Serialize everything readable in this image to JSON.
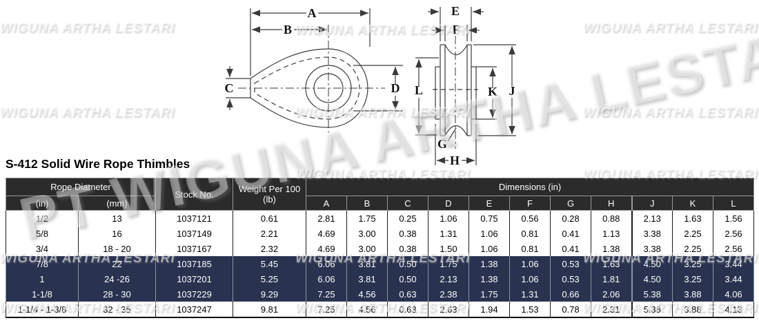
{
  "title": "S-412 Solid Wire Rope Thimbles",
  "watermark": {
    "small_text": "WIGUNA ARTHA LESTARI",
    "big_text": "PT WIGUNA ARTHA LESTARI"
  },
  "diagram": {
    "labels": {
      "a": "A",
      "b": "B",
      "c": "C",
      "d": "D",
      "e": "E",
      "f": "F",
      "g": "G",
      "h": "H",
      "j": "J",
      "k": "K",
      "l": "L"
    }
  },
  "table": {
    "headers": {
      "rope_diameter": "Rope Diameter",
      "rope_in": "(in)",
      "rope_mm": "(mm)",
      "stock_no": "Stock No.",
      "weight_line1": "Weight Per 100",
      "weight_line2": "(lb)",
      "dimensions": "Dimensions (in)",
      "dim_cols": [
        "A",
        "B",
        "C",
        "D",
        "E",
        "F",
        "G",
        "H",
        "J",
        "K",
        "L"
      ]
    },
    "rows": [
      {
        "rope_in": "1/2",
        "rope_mm": "13",
        "stock_no": "1037121",
        "weight": "0.61",
        "highlighted": false,
        "dims": [
          "2.81",
          "1.75",
          "0.25",
          "1.06",
          "0.75",
          "0.56",
          "0.28",
          "0.88",
          "2.13",
          "1.63",
          "1.56"
        ]
      },
      {
        "rope_in": "5/8",
        "rope_mm": "16",
        "stock_no": "1037149",
        "weight": "2.21",
        "highlighted": false,
        "dims": [
          "4.69",
          "3.00",
          "0.38",
          "1.31",
          "1.06",
          "0.81",
          "0.41",
          "1.13",
          "3.38",
          "2.25",
          "2.56"
        ]
      },
      {
        "rope_in": "3/4",
        "rope_mm": "18 - 20",
        "stock_no": "1037167",
        "weight": "2.32",
        "highlighted": false,
        "dims": [
          "4.69",
          "3.00",
          "0.38",
          "1.50",
          "1.06",
          "0.81",
          "0.41",
          "1.38",
          "3.38",
          "2.25",
          "2.56"
        ]
      },
      {
        "rope_in": "7/8",
        "rope_mm": "22",
        "stock_no": "1037185",
        "weight": "5.45",
        "highlighted": true,
        "dims": [
          "6.06",
          "3.81",
          "0.50",
          "1.75",
          "1.38",
          "1.06",
          "0.53",
          "1.63",
          "4.50",
          "3.25",
          "3.44"
        ]
      },
      {
        "rope_in": "1",
        "rope_mm": "24 -26",
        "stock_no": "1037201",
        "weight": "5.25",
        "highlighted": true,
        "dims": [
          "6.06",
          "3.81",
          "0.50",
          "2.13",
          "1.38",
          "1.06",
          "0.53",
          "1.81",
          "4.50",
          "3.25",
          "3.44"
        ]
      },
      {
        "rope_in": "1-1/8",
        "rope_mm": "28 - 30",
        "stock_no": "1037229",
        "weight": "9.29",
        "highlighted": true,
        "dims": [
          "7.25",
          "4.56",
          "0.63",
          "2.38",
          "1.75",
          "1.31",
          "0.66",
          "2.06",
          "5.38",
          "3.88",
          "4.06"
        ]
      },
      {
        "rope_in": "1-1/4 - 1-3/8",
        "rope_mm": "32 - 35",
        "stock_no": "1037247",
        "weight": "9.81",
        "highlighted": false,
        "dims": [
          "7.25",
          "4.56",
          "0.63",
          "2.63",
          "1.94",
          "1.53",
          "0.78",
          "2.31",
          "5.38",
          "3.88",
          "4.13"
        ]
      }
    ]
  },
  "colors": {
    "header_bg": "#2b2b2b",
    "highlight_row_bg": "#293350",
    "highlight_text": "#ffffff",
    "row_text": "#000000"
  }
}
